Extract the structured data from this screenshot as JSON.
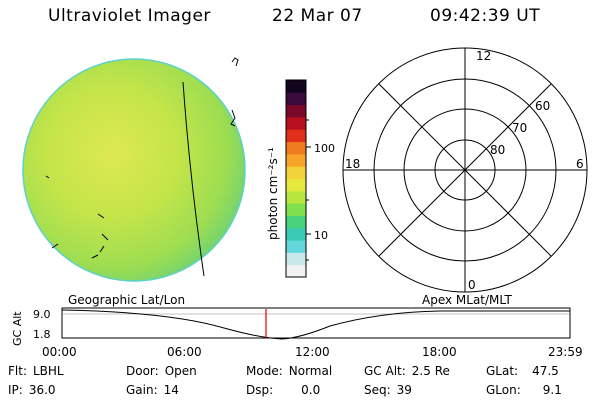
{
  "header": {
    "instrument": "Ultraviolet Imager",
    "date": "22 Mar 07",
    "time": "09:42:39 UT"
  },
  "colorbar": {
    "label": "photon cm⁻²s⁻¹",
    "tick_labels": [
      "100",
      "10"
    ],
    "colors": [
      "#f2f2f2",
      "#c9e8ea",
      "#63d6dc",
      "#3ac9b2",
      "#48d27a",
      "#7ee04a",
      "#b9e63c",
      "#e7e83e",
      "#f4d23c",
      "#f6a52a",
      "#f07a1e",
      "#e0301c",
      "#b8101e",
      "#7a0828",
      "#3b0a3c",
      "#12061e"
    ]
  },
  "polar_plot": {
    "mlt_labels": {
      "top": "12",
      "right": "6",
      "left": "18",
      "bottom": "0"
    },
    "lat_labels": [
      "60",
      "70",
      "80"
    ]
  },
  "timeline": {
    "left_title": "Geographic Lat/Lon",
    "right_title": "Apex  MLat/MLT",
    "y_axis_label": "GC Alt",
    "y_ticks": [
      "9.0",
      "1.8"
    ],
    "x_ticks": [
      "00:00",
      "06:00",
      "12:00",
      "18:00",
      "23:59"
    ],
    "marker_color": "#e00000"
  },
  "status": {
    "flt": {
      "label": "Flt:",
      "value": "LBHL"
    },
    "ip": {
      "label": "IP:",
      "value": "36.0"
    },
    "door": {
      "label": "Door:",
      "value": "Open"
    },
    "gain": {
      "label": "Gain:",
      "value": "14"
    },
    "mode": {
      "label": "Mode:",
      "value": "Normal"
    },
    "dsp": {
      "label": "Dsp:",
      "value": "0.0"
    },
    "gc_alt": {
      "label": "GC Alt:",
      "value": "2.5 Re"
    },
    "seq": {
      "label": "Seq:",
      "value": "39"
    },
    "glat": {
      "label": "GLat:",
      "value": "47.5"
    },
    "glon": {
      "label": "GLon:",
      "value": "9.1"
    }
  }
}
